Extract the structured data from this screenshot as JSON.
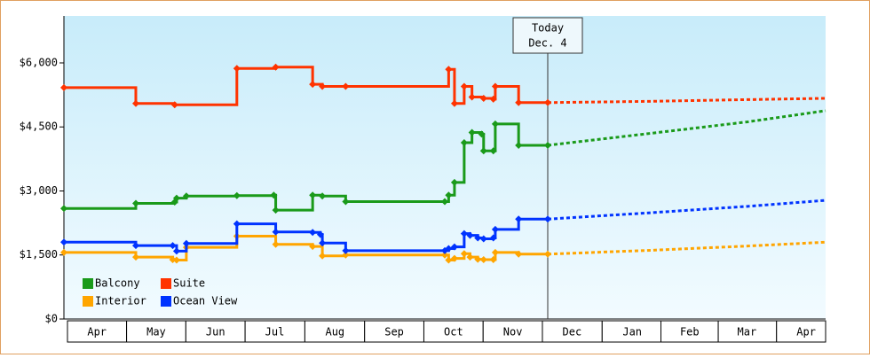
{
  "chart_data": {
    "type": "step-line",
    "annotation": {
      "x": 247,
      "lines": [
        "Today",
        "Dec. 4"
      ]
    },
    "xlim": [
      -2,
      390
    ],
    "xticks": [
      {
        "value": 15,
        "label": "Apr"
      },
      {
        "value": 45.5,
        "label": "May"
      },
      {
        "value": 76,
        "label": "Jun"
      },
      {
        "value": 106.5,
        "label": "Jul"
      },
      {
        "value": 137.5,
        "label": "Aug"
      },
      {
        "value": 168,
        "label": "Sep"
      },
      {
        "value": 198.5,
        "label": "Oct"
      },
      {
        "value": 229,
        "label": "Nov"
      },
      {
        "value": 259.5,
        "label": "Dec"
      },
      {
        "value": 290.5,
        "label": "Jan"
      },
      {
        "value": 320,
        "label": "Feb"
      },
      {
        "value": 349.5,
        "label": "Mar"
      },
      {
        "value": 380,
        "label": "Apr"
      }
    ],
    "ylim": [
      0,
      7100
    ],
    "yticks": [
      {
        "value": 0,
        "label": "$0"
      },
      {
        "value": 1500,
        "label": "$1,500"
      },
      {
        "value": 3000,
        "label": "$3,000"
      },
      {
        "value": 4500,
        "label": "$4,500"
      },
      {
        "value": 6000,
        "label": "$6,000"
      }
    ],
    "series": [
      {
        "name": "Balcony",
        "color": "#1a9a1a",
        "x": [
          -2,
          35,
          55,
          56,
          61,
          87,
          106,
          107,
          126,
          131,
          143,
          194,
          196,
          199,
          204,
          208,
          213,
          214,
          219,
          220,
          232,
          247
        ],
        "values": [
          2590,
          2710,
          2740,
          2830,
          2880,
          2890,
          2900,
          2550,
          2900,
          2880,
          2750,
          2750,
          2900,
          3200,
          4130,
          4370,
          4330,
          3940,
          3940,
          4570,
          4070,
          4070
        ],
        "forecast_x": [
          247,
          300,
          350,
          390
        ],
        "forecast_values": [
          4070,
          4350,
          4620,
          4880
        ]
      },
      {
        "name": "Suite",
        "color": "#ff3300",
        "x": [
          -2,
          35,
          55,
          87,
          107,
          126,
          131,
          143,
          196,
          199,
          204,
          208,
          214,
          219,
          220,
          232,
          247
        ],
        "values": [
          5420,
          5050,
          5020,
          5870,
          5900,
          5500,
          5450,
          5450,
          5850,
          5050,
          5450,
          5200,
          5170,
          5150,
          5450,
          5070,
          5070
        ],
        "forecast_x": [
          247,
          300,
          350,
          390
        ],
        "forecast_values": [
          5070,
          5100,
          5140,
          5170
        ]
      },
      {
        "name": "Interior",
        "color": "#ffa500",
        "x": [
          -2,
          35,
          54,
          56,
          61,
          87,
          107,
          126,
          131,
          143,
          194,
          196,
          199,
          204,
          207,
          211,
          214,
          219,
          220,
          232,
          247
        ],
        "values": [
          1560,
          1450,
          1390,
          1380,
          1680,
          1940,
          1750,
          1700,
          1480,
          1500,
          1500,
          1380,
          1420,
          1530,
          1450,
          1400,
          1390,
          1390,
          1560,
          1520,
          1520
        ],
        "forecast_x": [
          247,
          300,
          350,
          390
        ],
        "forecast_values": [
          1520,
          1610,
          1710,
          1800
        ]
      },
      {
        "name": "Ocean View",
        "color": "#0033ff",
        "x": [
          -2,
          35,
          54,
          56,
          61,
          87,
          107,
          126,
          130,
          131,
          143,
          194,
          196,
          199,
          204,
          207,
          211,
          214,
          219,
          220,
          232,
          247
        ],
        "values": [
          1800,
          1720,
          1720,
          1590,
          1770,
          2230,
          2040,
          2030,
          1980,
          1780,
          1600,
          1600,
          1650,
          1690,
          2000,
          1960,
          1900,
          1880,
          1900,
          2100,
          2340,
          2340
        ],
        "forecast_x": [
          247,
          300,
          350,
          390
        ],
        "forecast_values": [
          2340,
          2490,
          2640,
          2780
        ]
      }
    ]
  }
}
